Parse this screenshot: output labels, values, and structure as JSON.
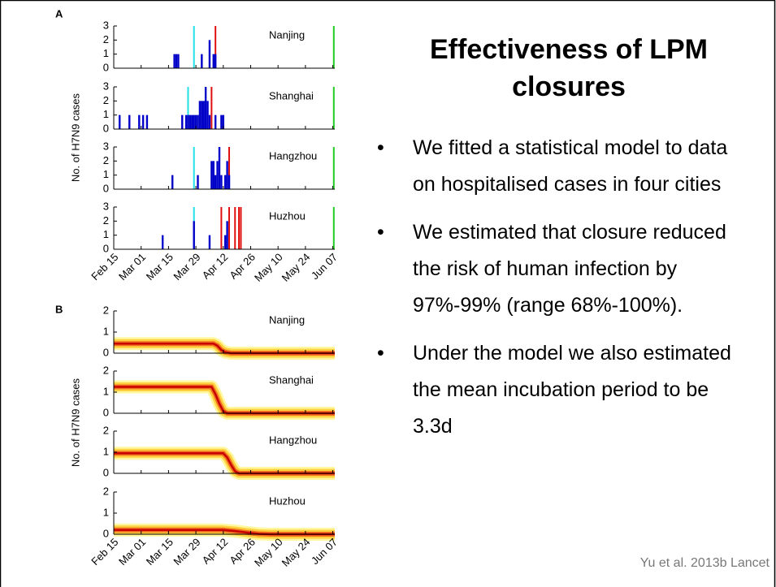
{
  "slide": {
    "title": "Effectiveness of LPM closures",
    "bullets": [
      "We fitted a statistical model to data on hospitalised cases in four cities",
      "We estimated that closure reduced the risk of human infection by 97%-99% (range 68%-100%).",
      "Under the model we also estimated the mean incubation period to be 3.3d"
    ],
    "citation": "Yu et al. 2013b Lancet"
  },
  "chart_data": [
    {
      "panel_label": "A",
      "ylabel": "No. of H7N9 cases",
      "xlim": [
        0,
        113
      ],
      "xticks": [
        {
          "value": 0,
          "label": "Feb 15"
        },
        {
          "value": 14,
          "label": "Mar 01"
        },
        {
          "value": 28,
          "label": "Mar 15"
        },
        {
          "value": 42,
          "label": "Mar 29"
        },
        {
          "value": 56,
          "label": "Apr 12"
        },
        {
          "value": 70,
          "label": "Apr 26"
        },
        {
          "value": 84,
          "label": "May 10"
        },
        {
          "value": 98,
          "label": "May 24"
        },
        {
          "value": 112,
          "label": "Jun 07"
        }
      ],
      "subplots": [
        {
          "type": "bar",
          "title": "Nanjing",
          "ylim": [
            0,
            3
          ],
          "yticks": [
            0,
            1,
            2,
            3
          ],
          "color": "#0000c8",
          "x": [
            31,
            32,
            33,
            45,
            49,
            51,
            52
          ],
          "values": [
            1,
            1,
            1,
            1,
            2,
            1,
            1
          ],
          "vlines": [
            {
              "x": 41,
              "color": "#22e0e8"
            },
            {
              "x": 52,
              "color": "#e01010"
            },
            {
              "x": 112.5,
              "color": "#22cc22"
            }
          ]
        },
        {
          "type": "bar",
          "title": "Shanghai",
          "ylim": [
            0,
            3
          ],
          "yticks": [
            0,
            1,
            2,
            3
          ],
          "color": "#0000c8",
          "x": [
            3,
            8,
            13,
            15,
            17,
            35,
            37,
            38,
            39,
            40,
            41,
            42,
            43,
            44,
            45,
            46,
            47,
            48,
            49,
            52,
            55,
            56
          ],
          "values": [
            1,
            1,
            1,
            1,
            1,
            1,
            1,
            1,
            1,
            1,
            1,
            1,
            1,
            2,
            2,
            2,
            3,
            2,
            1,
            1,
            1,
            1
          ],
          "vlines": [
            {
              "x": 38,
              "color": "#22e0e8"
            },
            {
              "x": 50,
              "color": "#e01010"
            },
            {
              "x": 112.5,
              "color": "#22cc22"
            }
          ]
        },
        {
          "type": "bar",
          "title": "Hangzhou",
          "ylim": [
            0,
            3
          ],
          "yticks": [
            0,
            1,
            2,
            3
          ],
          "color": "#0000c8",
          "x": [
            30,
            43,
            50,
            51,
            52,
            53,
            54,
            55,
            57,
            58,
            59
          ],
          "values": [
            1,
            1,
            2,
            2,
            1,
            2,
            3,
            1,
            1,
            2,
            1
          ],
          "vlines": [
            {
              "x": 41,
              "color": "#22e0e8"
            },
            {
              "x": 59,
              "color": "#e01010"
            },
            {
              "x": 112.5,
              "color": "#22cc22"
            }
          ]
        },
        {
          "type": "bar",
          "title": "Huzhou",
          "ylim": [
            0,
            3
          ],
          "yticks": [
            0,
            1,
            2,
            3
          ],
          "color": "#0000c8",
          "x": [
            25,
            41,
            49,
            57,
            58
          ],
          "values": [
            1,
            2,
            1,
            1,
            2
          ],
          "vlines": [
            {
              "x": 41,
              "color": "#22e0e8"
            },
            {
              "x": 55,
              "color": "#e01010"
            },
            {
              "x": 59,
              "color": "#e01010"
            },
            {
              "x": 62,
              "color": "#e01010"
            },
            {
              "x": 64,
              "color": "#e01010"
            },
            {
              "x": 65,
              "color": "#e01010"
            },
            {
              "x": 112.5,
              "color": "#22cc22"
            }
          ]
        }
      ]
    },
    {
      "panel_label": "B",
      "ylabel": "No. of H7N9 cases",
      "xlim": [
        0,
        113
      ],
      "xticks": [
        {
          "value": 0,
          "label": "Feb 15"
        },
        {
          "value": 14,
          "label": "Mar 01"
        },
        {
          "value": 28,
          "label": "Mar 15"
        },
        {
          "value": 42,
          "label": "Mar 29"
        },
        {
          "value": 56,
          "label": "Apr 12"
        },
        {
          "value": 70,
          "label": "Apr 26"
        },
        {
          "value": 84,
          "label": "May 10"
        },
        {
          "value": 98,
          "label": "May 24"
        },
        {
          "value": 112,
          "label": "Jun 07"
        }
      ],
      "subplots": [
        {
          "type": "band",
          "title": "Nanjing",
          "ylim": [
            0,
            2
          ],
          "yticks": [
            0,
            1,
            2
          ],
          "x": [
            0,
            51,
            53,
            55,
            57,
            60,
            113
          ],
          "values": [
            0.45,
            0.45,
            0.35,
            0.15,
            0.05,
            0,
            0
          ]
        },
        {
          "type": "band",
          "title": "Shanghai",
          "ylim": [
            0,
            2
          ],
          "yticks": [
            0,
            1,
            2
          ],
          "x": [
            0,
            50,
            52,
            54,
            56,
            58,
            113
          ],
          "values": [
            1.25,
            1.25,
            0.9,
            0.45,
            0.1,
            0,
            0
          ]
        },
        {
          "type": "band",
          "title": "Hangzhou",
          "ylim": [
            0,
            2
          ],
          "yticks": [
            0,
            1,
            2
          ],
          "x": [
            0,
            56,
            58,
            60,
            62,
            64,
            113
          ],
          "values": [
            0.95,
            0.95,
            0.75,
            0.4,
            0.1,
            0,
            0
          ]
        },
        {
          "type": "band",
          "title": "Huzhou",
          "ylim": [
            0,
            2
          ],
          "yticks": [
            0,
            1,
            2
          ],
          "x": [
            0,
            56,
            62,
            68,
            74,
            80,
            113
          ],
          "values": [
            0.2,
            0.2,
            0.15,
            0.08,
            0.02,
            0,
            0
          ]
        }
      ]
    }
  ]
}
